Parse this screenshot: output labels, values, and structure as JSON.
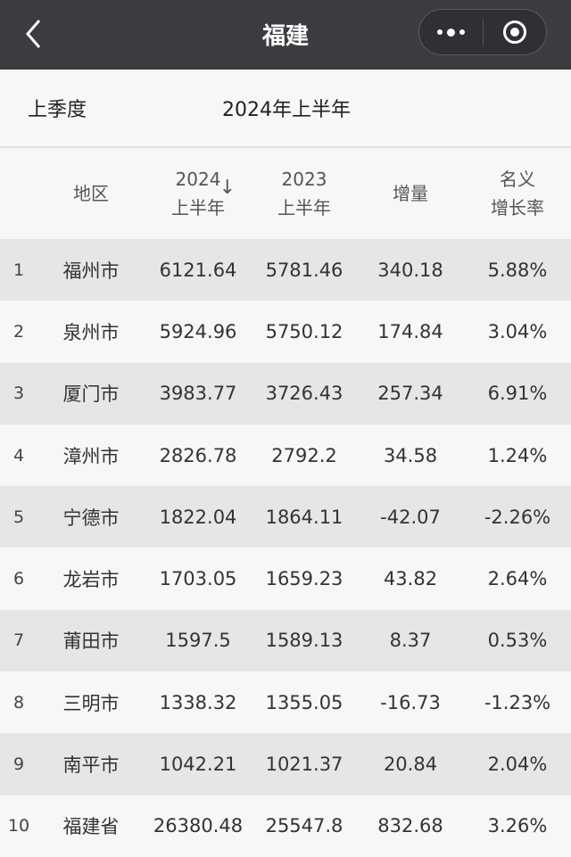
{
  "nav": {
    "title": "福建",
    "back_icon": "chevron-left-icon",
    "more_icon": "more-dots-icon",
    "close_icon": "target-circle-icon"
  },
  "period": {
    "label": "上季度",
    "value": "2024年上半年"
  },
  "table": {
    "headers": {
      "region": "地区",
      "col2024_line1": "2024",
      "col2024_line2": "上半年",
      "sort_arrow": "↓",
      "col2023_line1": "2023",
      "col2023_line2": "上半年",
      "increase": "增量",
      "rate_line1": "名义",
      "rate_line2": "增长率"
    },
    "rows": [
      {
        "rank": "1",
        "region": "福州市",
        "v2024": "6121.64",
        "v2023": "5781.46",
        "inc": "340.18",
        "rate": "5.88%"
      },
      {
        "rank": "2",
        "region": "泉州市",
        "v2024": "5924.96",
        "v2023": "5750.12",
        "inc": "174.84",
        "rate": "3.04%"
      },
      {
        "rank": "3",
        "region": "厦门市",
        "v2024": "3983.77",
        "v2023": "3726.43",
        "inc": "257.34",
        "rate": "6.91%"
      },
      {
        "rank": "4",
        "region": "漳州市",
        "v2024": "2826.78",
        "v2023": "2792.2",
        "inc": "34.58",
        "rate": "1.24%"
      },
      {
        "rank": "5",
        "region": "宁德市",
        "v2024": "1822.04",
        "v2023": "1864.11",
        "inc": "-42.07",
        "rate": "-2.26%"
      },
      {
        "rank": "6",
        "region": "龙岩市",
        "v2024": "1703.05",
        "v2023": "1659.23",
        "inc": "43.82",
        "rate": "2.64%"
      },
      {
        "rank": "7",
        "region": "莆田市",
        "v2024": "1597.5",
        "v2023": "1589.13",
        "inc": "8.37",
        "rate": "0.53%"
      },
      {
        "rank": "8",
        "region": "三明市",
        "v2024": "1338.32",
        "v2023": "1355.05",
        "inc": "-16.73",
        "rate": "-1.23%"
      },
      {
        "rank": "9",
        "region": "南平市",
        "v2024": "1042.21",
        "v2023": "1021.37",
        "inc": "20.84",
        "rate": "2.04%"
      },
      {
        "rank": "10",
        "region": "福建省",
        "v2024": "26380.48",
        "v2023": "25547.8",
        "inc": "832.68",
        "rate": "3.26%"
      }
    ]
  }
}
